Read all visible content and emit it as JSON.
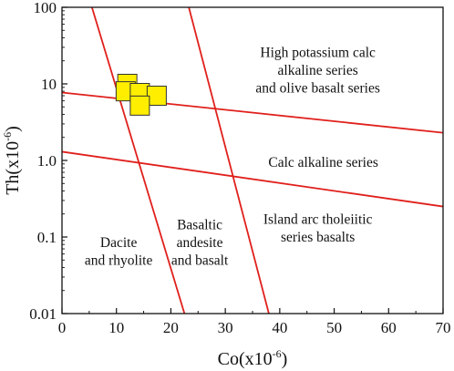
{
  "chart_data": {
    "type": "scatter",
    "x_axis": {
      "label": "Co(x10",
      "label_exponent": "-6",
      "label_suffix": ")",
      "range": [
        0,
        70
      ],
      "ticks": [
        0,
        10,
        20,
        30,
        40,
        50,
        60,
        70
      ],
      "tick_labels": [
        "0",
        "10",
        "20",
        "30",
        "40",
        "50",
        "60",
        "70"
      ],
      "scale": "linear"
    },
    "y_axis": {
      "label": "Th(x10",
      "label_exponent": "-6",
      "label_suffix": ")",
      "range": [
        0.01,
        100
      ],
      "ticks": [
        0.01,
        0.1,
        1,
        10,
        100
      ],
      "tick_labels": [
        "0.01",
        "0.1",
        "1.0",
        "10",
        "100"
      ],
      "scale": "log"
    },
    "grid": false,
    "legend": "none",
    "series": [
      {
        "marker": "square",
        "marker_color": "#ffee00",
        "marker_edge_color": "#333333",
        "points": [
          {
            "x": 12.0,
            "y": 10.0
          },
          {
            "x": 11.7,
            "y": 8.0
          },
          {
            "x": 14.3,
            "y": 7.6
          },
          {
            "x": 17.4,
            "y": 7.0
          },
          {
            "x": 14.3,
            "y": 5.2
          }
        ]
      }
    ],
    "boundary_lines": [
      {
        "color": "#e0201c",
        "from": {
          "x": 0,
          "y": 7.7
        },
        "to": {
          "x": 70,
          "y": 2.3
        }
      },
      {
        "color": "#e0201c",
        "from": {
          "x": 0,
          "y": 1.3
        },
        "to": {
          "x": 70,
          "y": 0.25
        }
      },
      {
        "color": "#e0201c",
        "from": {
          "x": 5.5,
          "y": 100
        },
        "to": {
          "x": 22.5,
          "y": 0.01
        }
      },
      {
        "color": "#e0201c",
        "from": {
          "x": 23.3,
          "y": 100
        },
        "to": {
          "x": 38.0,
          "y": 0.01
        }
      }
    ],
    "region_labels": [
      {
        "lines": [
          "High potassium calc",
          "alkaline series",
          "and olive basalt series"
        ],
        "x": 47,
        "y": 15
      },
      {
        "lines": [
          "Calc alkaline series"
        ],
        "x": 48,
        "y": 0.95
      },
      {
        "lines": [
          "Island arc tholeiitic",
          "series basalts"
        ],
        "x": 47,
        "y": 0.13
      },
      {
        "lines": [
          "Dacite",
          "and rhyolite"
        ],
        "x": 10.4,
        "y": 0.065
      },
      {
        "lines": [
          "Basaltic",
          "andesite",
          "and basalt"
        ],
        "x": 25.3,
        "y": 0.085
      }
    ]
  }
}
